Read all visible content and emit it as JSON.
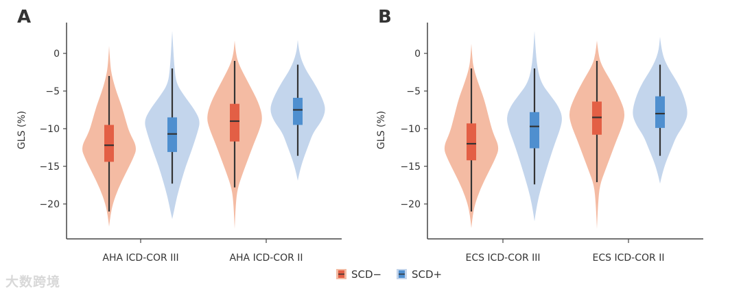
{
  "watermark": "大数跨境",
  "legend": [
    {
      "label": "SCD−",
      "fill": "#f4bba3",
      "box": "#e35f45"
    },
    {
      "label": "SCD+",
      "fill": "#c3d5ec",
      "box": "#4f8fcf"
    }
  ],
  "chart_data": [
    {
      "panel": "A",
      "type": "violin",
      "ylabel": "GLS (%)",
      "ylim": [
        -24.6,
        4
      ],
      "yticks": [
        0,
        -5,
        -10,
        -15,
        -20
      ],
      "categories": [
        "AHA ICD-COR III",
        "AHA ICD-COR II"
      ],
      "groups": [
        {
          "category": 0,
          "series": "SCD−",
          "whisker": [
            -3,
            -21
          ],
          "q1": -14.4,
          "q3": -9.5,
          "median": -12.2,
          "profile": [
            [
              1,
              0
            ],
            [
              -1.5,
              0.04
            ],
            [
              -3,
              0.1
            ],
            [
              -5,
              0.25
            ],
            [
              -7,
              0.45
            ],
            [
              -9,
              0.6
            ],
            [
              -10.5,
              0.72
            ],
            [
              -12.5,
              1
            ],
            [
              -14,
              0.85
            ],
            [
              -16,
              0.58
            ],
            [
              -18,
              0.32
            ],
            [
              -20,
              0.13
            ],
            [
              -21.5,
              0.05
            ],
            [
              -23,
              0
            ]
          ]
        },
        {
          "category": 0,
          "series": "SCD+",
          "whisker": [
            -2,
            -17.3
          ],
          "q1": -13.1,
          "q3": -8.5,
          "median": -10.7,
          "profile": [
            [
              3,
              0
            ],
            [
              1,
              0.03
            ],
            [
              -2,
              0.08
            ],
            [
              -4,
              0.15
            ],
            [
              -5.5,
              0.4
            ],
            [
              -7.5,
              0.8
            ],
            [
              -9,
              1
            ],
            [
              -10.5,
              0.9
            ],
            [
              -13,
              0.68
            ],
            [
              -15,
              0.48
            ],
            [
              -17,
              0.32
            ],
            [
              -19,
              0.17
            ],
            [
              -21,
              0.06
            ],
            [
              -22,
              0
            ]
          ]
        },
        {
          "category": 1,
          "series": "SCD−",
          "whisker": [
            -1,
            -17.8
          ],
          "q1": -11.7,
          "q3": -6.7,
          "median": -9.0,
          "profile": [
            [
              1.7,
              0
            ],
            [
              0,
              0.04
            ],
            [
              -1.5,
              0.15
            ],
            [
              -4,
              0.5
            ],
            [
              -6.5,
              0.85
            ],
            [
              -8.5,
              1
            ],
            [
              -10,
              0.9
            ],
            [
              -12,
              0.68
            ],
            [
              -14,
              0.48
            ],
            [
              -16,
              0.28
            ],
            [
              -18,
              0.1
            ],
            [
              -20,
              0.04
            ],
            [
              -23.3,
              0
            ]
          ]
        },
        {
          "category": 1,
          "series": "SCD+",
          "whisker": [
            -1.5,
            -13.6
          ],
          "q1": -9.5,
          "q3": -5.9,
          "median": -7.5,
          "profile": [
            [
              1.8,
              0
            ],
            [
              0,
              0.05
            ],
            [
              -2,
              0.25
            ],
            [
              -4,
              0.6
            ],
            [
              -6,
              0.88
            ],
            [
              -7.5,
              1
            ],
            [
              -9,
              0.85
            ],
            [
              -10.5,
              0.55
            ],
            [
              -12,
              0.4
            ],
            [
              -14,
              0.2
            ],
            [
              -15.5,
              0.08
            ],
            [
              -16.9,
              0
            ]
          ]
        }
      ]
    },
    {
      "panel": "B",
      "type": "violin",
      "ylabel": "GLS (%)",
      "ylim": [
        -24.6,
        4
      ],
      "yticks": [
        0,
        -5,
        -10,
        -15,
        -20
      ],
      "categories": [
        "ECS ICD-COR III",
        "ECS ICD-COR II"
      ],
      "groups": [
        {
          "category": 0,
          "series": "SCD−",
          "whisker": [
            -2,
            -21
          ],
          "q1": -14.2,
          "q3": -9.3,
          "median": -12.0,
          "profile": [
            [
              1.3,
              0
            ],
            [
              -0.5,
              0.03
            ],
            [
              -2,
              0.08
            ],
            [
              -4,
              0.25
            ],
            [
              -6,
              0.45
            ],
            [
              -8.5,
              0.62
            ],
            [
              -10.5,
              0.76
            ],
            [
              -12.5,
              1
            ],
            [
              -14,
              0.85
            ],
            [
              -16,
              0.58
            ],
            [
              -18,
              0.32
            ],
            [
              -20,
              0.13
            ],
            [
              -21.5,
              0.05
            ],
            [
              -23.2,
              0
            ]
          ]
        },
        {
          "category": 0,
          "series": "SCD+",
          "whisker": [
            -2,
            -17.4
          ],
          "q1": -12.6,
          "q3": -7.8,
          "median": -9.7,
          "profile": [
            [
              3,
              0
            ],
            [
              1,
              0.03
            ],
            [
              -2,
              0.1
            ],
            [
              -4,
              0.25
            ],
            [
              -5.5,
              0.55
            ],
            [
              -7,
              0.85
            ],
            [
              -8.5,
              1
            ],
            [
              -10,
              0.92
            ],
            [
              -12,
              0.72
            ],
            [
              -14.5,
              0.5
            ],
            [
              -17,
              0.3
            ],
            [
              -19,
              0.15
            ],
            [
              -21,
              0.05
            ],
            [
              -22.3,
              0
            ]
          ]
        },
        {
          "category": 1,
          "series": "SCD−",
          "whisker": [
            -1,
            -17.1
          ],
          "q1": -10.8,
          "q3": -6.4,
          "median": -8.5,
          "profile": [
            [
              1.7,
              0
            ],
            [
              0,
              0.05
            ],
            [
              -1.5,
              0.15
            ],
            [
              -4,
              0.55
            ],
            [
              -6.5,
              0.88
            ],
            [
              -8,
              1
            ],
            [
              -9.5,
              0.92
            ],
            [
              -11.5,
              0.7
            ],
            [
              -13.5,
              0.5
            ],
            [
              -15.5,
              0.3
            ],
            [
              -17.5,
              0.1
            ],
            [
              -20,
              0.04
            ],
            [
              -23.3,
              0
            ]
          ]
        },
        {
          "category": 1,
          "series": "SCD+",
          "whisker": [
            -1.5,
            -13.6
          ],
          "q1": -9.9,
          "q3": -5.7,
          "median": -8.0,
          "profile": [
            [
              2.2,
              0
            ],
            [
              0,
              0.06
            ],
            [
              -2,
              0.3
            ],
            [
              -4,
              0.65
            ],
            [
              -6,
              0.88
            ],
            [
              -8,
              1
            ],
            [
              -9.5,
              0.85
            ],
            [
              -11,
              0.58
            ],
            [
              -12.5,
              0.42
            ],
            [
              -14.5,
              0.2
            ],
            [
              -16,
              0.08
            ],
            [
              -17.3,
              0
            ]
          ]
        }
      ]
    }
  ]
}
